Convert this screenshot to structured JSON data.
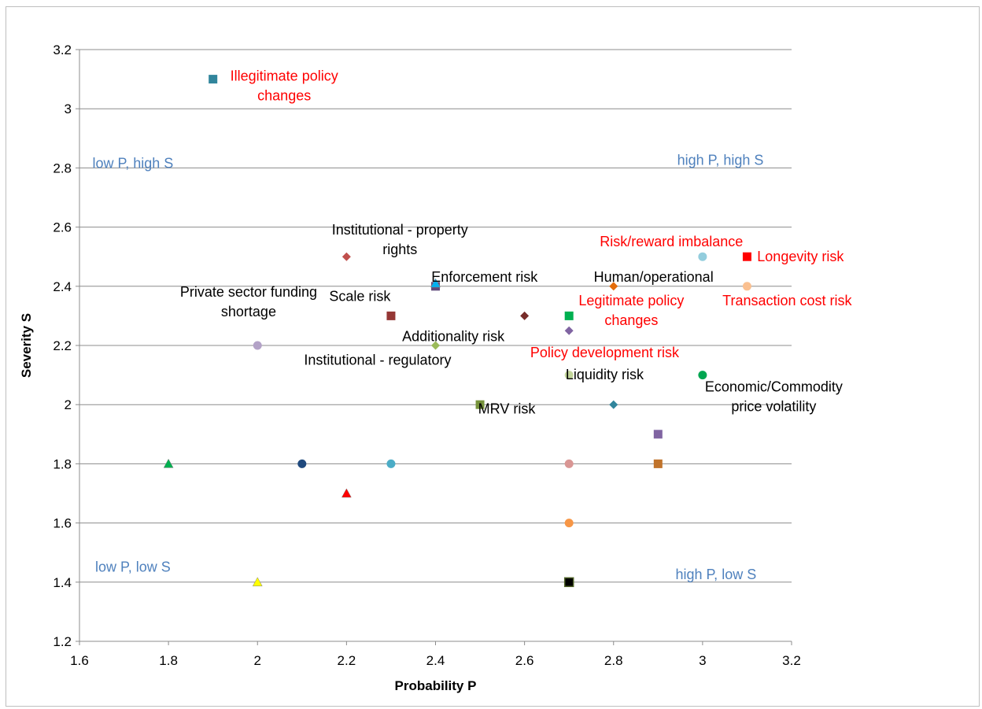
{
  "chart_data": {
    "type": "scatter",
    "xlabel": "Probability P",
    "ylabel": "Severity S",
    "xlim": [
      1.6,
      3.2
    ],
    "ylim": [
      1.2,
      3.2
    ],
    "xticks": [
      "1.6",
      "1.8",
      "2",
      "2.2",
      "2.4",
      "2.6",
      "2.8",
      "3",
      "3.2"
    ],
    "yticks": [
      "1.2",
      "1.4",
      "1.6",
      "1.8",
      "2",
      "2.2",
      "2.4",
      "2.6",
      "2.8",
      "3",
      "3.2"
    ],
    "grid": "horizontal",
    "legend": "none",
    "points": [
      {
        "x": 1.9,
        "y": 3.1,
        "marker": "square",
        "color": "#31859c"
      },
      {
        "x": 2.2,
        "y": 2.5,
        "marker": "diamond",
        "color": "#c0504d"
      },
      {
        "x": 2.4,
        "y": 2.4,
        "marker": "square",
        "color": "#604a7b"
      },
      {
        "x": 2.4,
        "y": 2.41,
        "marker": "triangle",
        "color": "#00b0f0"
      },
      {
        "x": 2.3,
        "y": 2.3,
        "marker": "square",
        "color": "#953735"
      },
      {
        "x": 2.6,
        "y": 2.3,
        "marker": "diamond",
        "color": "#772c2a"
      },
      {
        "x": 2.7,
        "y": 2.3,
        "marker": "square",
        "color": "#00b050"
      },
      {
        "x": 2.7,
        "y": 2.25,
        "marker": "diamond",
        "color": "#8064a2"
      },
      {
        "x": 2.8,
        "y": 2.4,
        "marker": "diamond",
        "color": "#e46c0a"
      },
      {
        "x": 3.0,
        "y": 2.5,
        "marker": "circle",
        "color": "#93cddd"
      },
      {
        "x": 3.1,
        "y": 2.5,
        "marker": "square",
        "color": "#ff0000"
      },
      {
        "x": 3.1,
        "y": 2.4,
        "marker": "circle",
        "color": "#fac090"
      },
      {
        "x": 2.0,
        "y": 2.2,
        "marker": "circle",
        "color": "#b3a2c7"
      },
      {
        "x": 2.4,
        "y": 2.2,
        "marker": "diamond",
        "color": "#9bbb59"
      },
      {
        "x": 2.7,
        "y": 2.1,
        "marker": "circle",
        "color": "#c3d69b"
      },
      {
        "x": 3.0,
        "y": 2.1,
        "marker": "circle",
        "color": "#00a651"
      },
      {
        "x": 2.5,
        "y": 2.0,
        "marker": "square",
        "color": "#77933c"
      },
      {
        "x": 2.8,
        "y": 2.0,
        "marker": "diamond",
        "color": "#31859c"
      },
      {
        "x": 2.9,
        "y": 1.9,
        "marker": "square",
        "color": "#8064a2"
      },
      {
        "x": 1.8,
        "y": 1.8,
        "marker": "triangle",
        "color": "#00b050"
      },
      {
        "x": 2.1,
        "y": 1.8,
        "marker": "circle",
        "color": "#1f497d"
      },
      {
        "x": 2.3,
        "y": 1.8,
        "marker": "circle",
        "color": "#4bacc6"
      },
      {
        "x": 2.7,
        "y": 1.8,
        "marker": "circle",
        "color": "#d99694"
      },
      {
        "x": 2.9,
        "y": 1.8,
        "marker": "square",
        "color": "#c0732b"
      },
      {
        "x": 2.2,
        "y": 1.7,
        "marker": "triangle",
        "color": "#ff0000"
      },
      {
        "x": 2.7,
        "y": 1.6,
        "marker": "circle",
        "color": "#f79646"
      },
      {
        "x": 2.0,
        "y": 1.4,
        "marker": "triangle",
        "color": "#ffff00"
      },
      {
        "x": 2.7,
        "y": 1.4,
        "marker": "square",
        "color": "#000000",
        "stroke": "#4f6228"
      }
    ],
    "annotations": [
      {
        "lines": [
          "Illegitimate policy",
          "changes"
        ],
        "color": "#ff0000",
        "x": 2.06,
        "y": 3.095,
        "align": "middle"
      },
      {
        "lines": [
          "low P, high S"
        ],
        "color": "#4f81bd",
        "x": 1.72,
        "y": 2.8,
        "align": "middle"
      },
      {
        "lines": [
          "high P, high S"
        ],
        "color": "#4f81bd",
        "x": 3.04,
        "y": 2.81,
        "align": "middle"
      },
      {
        "lines": [
          "Institutional - property",
          "rights"
        ],
        "color": "#000000",
        "x": 2.32,
        "y": 2.575,
        "align": "middle"
      },
      {
        "lines": [
          "Risk/reward imbalance"
        ],
        "color": "#ff0000",
        "x": 2.93,
        "y": 2.535,
        "align": "middle"
      },
      {
        "lines": [
          "Longevity risk"
        ],
        "color": "#ff0000",
        "x": 3.22,
        "y": 2.485,
        "align": "middle"
      },
      {
        "lines": [
          "Enforcement risk"
        ],
        "color": "#000000",
        "x": 2.51,
        "y": 2.415,
        "align": "middle"
      },
      {
        "lines": [
          "Human/operational"
        ],
        "color": "#000000",
        "x": 2.89,
        "y": 2.415,
        "align": "middle"
      },
      {
        "lines": [
          "Private sector funding",
          "shortage"
        ],
        "color": "#000000",
        "x": 1.98,
        "y": 2.365,
        "align": "middle"
      },
      {
        "lines": [
          "Scale risk"
        ],
        "color": "#000000",
        "x": 2.23,
        "y": 2.35,
        "align": "middle"
      },
      {
        "lines": [
          "Legitimate policy",
          "changes"
        ],
        "color": "#ff0000",
        "x": 2.84,
        "y": 2.335,
        "align": "middle"
      },
      {
        "lines": [
          "Transaction cost risk"
        ],
        "color": "#ff0000",
        "x": 3.19,
        "y": 2.335,
        "align": "middle"
      },
      {
        "lines": [
          "Additionality risk"
        ],
        "color": "#000000",
        "x": 2.44,
        "y": 2.215,
        "align": "middle"
      },
      {
        "lines": [
          "Policy development risk"
        ],
        "color": "#ff0000",
        "x": 2.78,
        "y": 2.16,
        "align": "middle"
      },
      {
        "lines": [
          "Institutional - regulatory"
        ],
        "color": "#000000",
        "x": 2.27,
        "y": 2.135,
        "align": "middle"
      },
      {
        "lines": [
          "Liquidity risk"
        ],
        "color": "#000000",
        "x": 2.78,
        "y": 2.085,
        "align": "middle"
      },
      {
        "lines": [
          "Economic/Commodity",
          "price volatility"
        ],
        "color": "#000000",
        "x": 3.16,
        "y": 2.045,
        "align": "middle"
      },
      {
        "lines": [
          "MRV risk"
        ],
        "color": "#000000",
        "x": 2.56,
        "y": 1.97,
        "align": "middle"
      },
      {
        "lines": [
          "low P, low S"
        ],
        "color": "#4f81bd",
        "x": 1.72,
        "y": 1.435,
        "align": "middle"
      },
      {
        "lines": [
          "high P, low S"
        ],
        "color": "#4f81bd",
        "x": 3.03,
        "y": 1.41,
        "align": "middle"
      }
    ]
  }
}
